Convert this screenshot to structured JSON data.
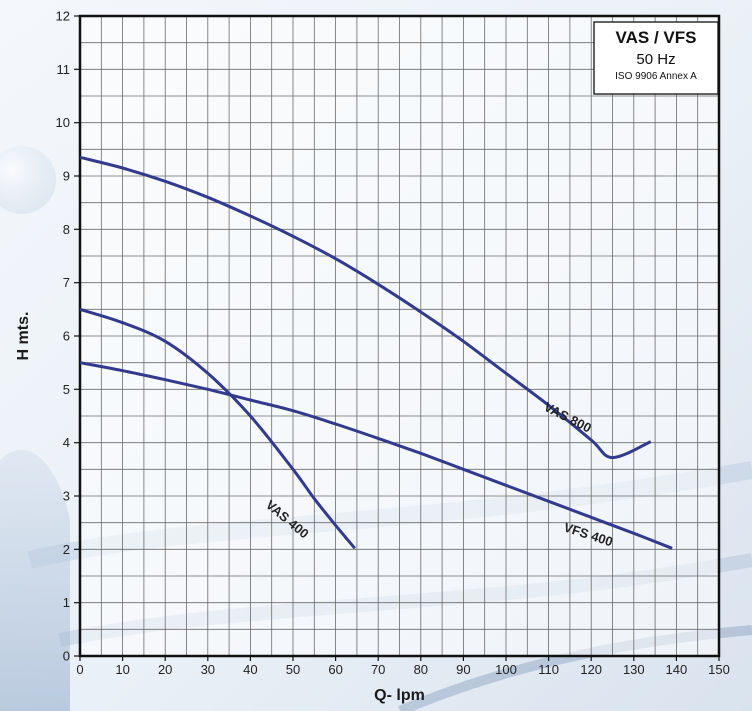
{
  "chart_data": {
    "type": "line",
    "title": "",
    "xlabel": "Q- lpm",
    "ylabel": "H mts.",
    "xlim": [
      0,
      150
    ],
    "ylim": [
      0,
      12
    ],
    "x_ticks": [
      0,
      10,
      20,
      30,
      40,
      50,
      60,
      70,
      80,
      90,
      100,
      110,
      120,
      130,
      140,
      150
    ],
    "y_ticks": [
      0,
      1,
      2,
      3,
      4,
      5,
      6,
      7,
      8,
      9,
      10,
      11,
      12
    ],
    "grid": true,
    "legend": {
      "title": "VAS / VFS",
      "frequency": "50 Hz",
      "standard": "ISO 9906 Annex A",
      "position": "top-right"
    },
    "series": [
      {
        "name": "VAS 800",
        "color": "#323a8e",
        "points": [
          [
            0,
            9.35
          ],
          [
            10,
            9.15
          ],
          [
            20,
            8.9
          ],
          [
            30,
            8.6
          ],
          [
            40,
            8.25
          ],
          [
            50,
            7.87
          ],
          [
            60,
            7.45
          ],
          [
            70,
            6.97
          ],
          [
            80,
            6.45
          ],
          [
            90,
            5.9
          ],
          [
            100,
            5.3
          ],
          [
            110,
            4.7
          ],
          [
            120,
            4.05
          ],
          [
            125,
            3.72
          ],
          [
            134,
            4.02
          ]
        ]
      },
      {
        "name": "VFS 400",
        "color": "#323a8e",
        "points": [
          [
            0,
            5.5
          ],
          [
            10,
            5.35
          ],
          [
            20,
            5.18
          ],
          [
            30,
            5.0
          ],
          [
            40,
            4.8
          ],
          [
            50,
            4.6
          ],
          [
            60,
            4.35
          ],
          [
            70,
            4.08
          ],
          [
            80,
            3.8
          ],
          [
            90,
            3.5
          ],
          [
            100,
            3.2
          ],
          [
            110,
            2.9
          ],
          [
            120,
            2.6
          ],
          [
            130,
            2.3
          ],
          [
            139,
            2.02
          ]
        ]
      },
      {
        "name": "VAS 400",
        "color": "#323a8e",
        "points": [
          [
            0,
            6.5
          ],
          [
            10,
            6.25
          ],
          [
            20,
            5.9
          ],
          [
            30,
            5.3
          ],
          [
            40,
            4.5
          ],
          [
            50,
            3.5
          ],
          [
            55,
            2.95
          ],
          [
            60,
            2.45
          ],
          [
            64.5,
            2.02
          ]
        ]
      }
    ],
    "curve_labels": [
      {
        "text": "VAS 800",
        "x": 114,
        "y": 4.4,
        "angle": 27
      },
      {
        "text": "VFS 400",
        "x": 119,
        "y": 2.2,
        "angle": 18
      },
      {
        "text": "VAS 400",
        "x": 48,
        "y": 2.5,
        "angle": 40
      }
    ]
  }
}
